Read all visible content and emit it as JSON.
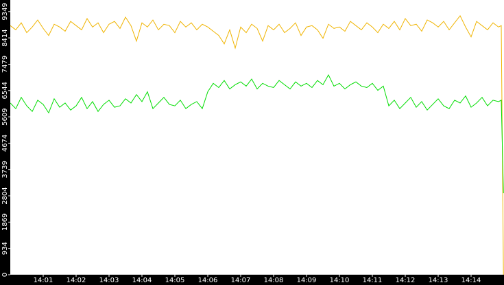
{
  "chart_data": {
    "type": "line",
    "x": [
      0,
      10,
      20,
      30,
      40,
      50,
      60,
      70,
      80,
      90,
      100,
      110,
      120,
      130,
      140,
      150,
      160,
      170,
      180,
      190,
      200,
      210,
      220,
      230,
      240,
      250,
      260,
      270,
      280,
      290,
      300,
      310,
      320,
      330,
      340,
      350,
      360,
      370,
      380,
      390,
      400,
      410,
      420,
      430,
      440,
      450,
      460,
      470,
      480,
      490,
      500,
      510,
      520,
      530,
      540,
      550,
      560,
      570,
      580,
      590,
      600,
      610,
      620,
      630,
      640,
      650,
      660,
      670,
      680,
      690,
      700,
      710,
      720,
      730,
      740,
      750,
      760,
      770,
      780,
      790,
      800,
      810,
      820,
      830,
      840,
      850,
      860,
      870,
      880,
      890,
      895,
      899
    ],
    "series": [
      {
        "color": "#f0b400",
        "values": [
          8850,
          8700,
          8950,
          8600,
          8800,
          9050,
          8750,
          8500,
          8900,
          8800,
          8650,
          9000,
          8850,
          8700,
          9100,
          8800,
          8950,
          8600,
          8900,
          9000,
          8750,
          9150,
          8850,
          8300,
          8950,
          8800,
          9050,
          8700,
          8900,
          8850,
          8600,
          9000,
          8800,
          8950,
          8700,
          8900,
          8800,
          8650,
          8500,
          8200,
          8700,
          8050,
          8800,
          8600,
          8900,
          8750,
          8300,
          8850,
          8700,
          8900,
          8600,
          8750,
          8950,
          8500,
          8800,
          8850,
          8700,
          8400,
          8900,
          8750,
          8800,
          8650,
          9000,
          8850,
          8700,
          8950,
          8800,
          8600,
          8900,
          8750,
          9000,
          8700,
          9100,
          8850,
          8900,
          8650,
          9050,
          8950,
          8800,
          9000,
          8700,
          8950,
          9200,
          8800,
          8450,
          9000,
          8850,
          8700,
          8950,
          8800,
          8850,
          0
        ]
      },
      {
        "color": "#00dd00",
        "values": [
          6100,
          5900,
          6300,
          6000,
          5800,
          6200,
          6050,
          5750,
          6250,
          5950,
          6100,
          5850,
          6000,
          6300,
          5900,
          6150,
          5800,
          6050,
          6200,
          5950,
          6000,
          6250,
          6100,
          6400,
          6150,
          6500,
          5900,
          6100,
          6300,
          6050,
          6000,
          6200,
          5900,
          6050,
          6150,
          5900,
          6500,
          6800,
          6650,
          6900,
          6600,
          6750,
          6850,
          6700,
          6950,
          6600,
          6800,
          6700,
          6650,
          6900,
          6750,
          6600,
          6850,
          6700,
          6800,
          6650,
          6900,
          6750,
          7100,
          6700,
          6800,
          6600,
          6750,
          6850,
          6700,
          6650,
          6800,
          6550,
          6700,
          6000,
          6200,
          5900,
          6100,
          6300,
          5950,
          6150,
          5850,
          6050,
          6250,
          6000,
          5900,
          6200,
          6100,
          6350,
          5950,
          6100,
          6300,
          6000,
          6200,
          6150,
          6200,
          2900
        ]
      }
    ],
    "xlim": [
      0,
      900
    ],
    "xticks": [
      {
        "value": 60,
        "label": "14:01"
      },
      {
        "value": 120,
        "label": "14:02"
      },
      {
        "value": 180,
        "label": "14:03"
      },
      {
        "value": 240,
        "label": "14:04"
      },
      {
        "value": 300,
        "label": "14:05"
      },
      {
        "value": 360,
        "label": "14:06"
      },
      {
        "value": 420,
        "label": "14:07"
      },
      {
        "value": 480,
        "label": "14:08"
      },
      {
        "value": 540,
        "label": "14:09"
      },
      {
        "value": 600,
        "label": "14:10"
      },
      {
        "value": 660,
        "label": "14:11"
      },
      {
        "value": 720,
        "label": "14:12"
      },
      {
        "value": 780,
        "label": "14:13"
      },
      {
        "value": 840,
        "label": "14:14"
      }
    ],
    "ylim": [
      0,
      9760
    ],
    "yticks": [
      0,
      934,
      1869,
      2804,
      3739,
      4674,
      5609,
      6544,
      7479,
      8414,
      9349
    ]
  }
}
